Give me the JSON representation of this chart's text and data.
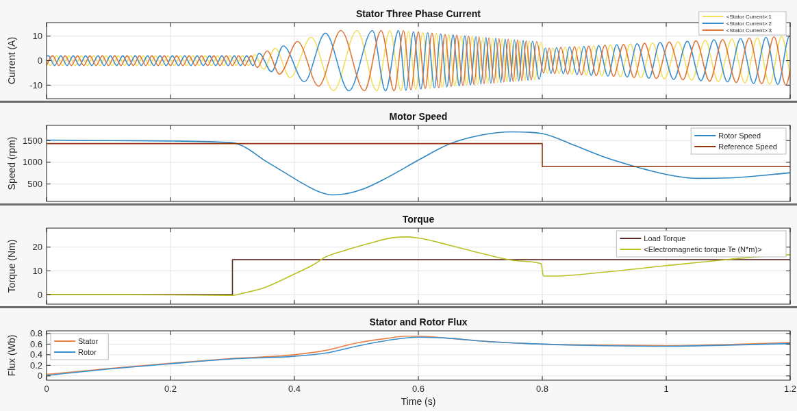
{
  "chart_data": [
    {
      "type": "line",
      "title": "Stator Three Phase Current",
      "ylabel": "Current (A)",
      "xlim": [
        0,
        1.2
      ],
      "ylim": [
        -15.5,
        15.5
      ],
      "xticks": [
        0,
        0.2,
        0.4,
        0.6,
        0.8,
        1,
        1.2
      ],
      "yticks": [
        -10,
        0,
        10
      ],
      "grid": true,
      "legend": "top right",
      "tick_labels": "y",
      "series": [
        {
          "name": "<Stator Current>:1",
          "color": "#f3df5e",
          "x": [
            0,
            0.006,
            0.016,
            0.026,
            0.036,
            0.046,
            0.056,
            0.066,
            0.076,
            0.086,
            0.096,
            0.106,
            0.116,
            0.126,
            0.136,
            0.146,
            0.156,
            0.166,
            0.176,
            0.186,
            0.196,
            0.206,
            0.216,
            0.226,
            0.236,
            0.246,
            0.256,
            0.266,
            0.276,
            0.286,
            0.296,
            0.306,
            0.316,
            0.326,
            0.336,
            0.35,
            0.369,
            0.393,
            0.427,
            0.463,
            0.501,
            0.533,
            0.554,
            0.572,
            0.584,
            0.596,
            0.607,
            0.619,
            0.629,
            0.639,
            0.649,
            0.659,
            0.669,
            0.678,
            0.687,
            0.696,
            0.704,
            0.712,
            0.72,
            0.728,
            0.735,
            0.743,
            0.75,
            0.757,
            0.764,
            0.772,
            0.779,
            0.788,
            0.798,
            0.808,
            0.817,
            0.827,
            0.837,
            0.848,
            0.859,
            0.871,
            0.883,
            0.896,
            0.91,
            0.926,
            0.942,
            0.959,
            0.978,
            0.997,
            1.019,
            1.041,
            1.063,
            1.084,
            1.106,
            1.127,
            1.147,
            1.167,
            1.186,
            1.2
          ],
          "values": [
            0.6,
            -2,
            2,
            -2,
            2,
            -2,
            2,
            -2,
            2,
            -2,
            2,
            -2,
            2,
            -2,
            2,
            -2,
            2,
            -2,
            2,
            -2,
            2,
            -2,
            2,
            -2,
            2,
            -2,
            2,
            -2,
            2,
            -2,
            2,
            -2,
            2,
            -2,
            2.5,
            -3.5,
            5,
            -6.9,
            9.5,
            -12.3,
            12.3,
            -12.3,
            12.3,
            -12.3,
            12,
            -11.8,
            11.5,
            -11.3,
            11.1,
            -10.8,
            10.6,
            -10.4,
            10.2,
            -10,
            9.8,
            -9.6,
            9.5,
            -9.3,
            9.2,
            -9,
            8.9,
            -8.7,
            8.6,
            -8.4,
            8.3,
            -8.1,
            8,
            -7.8,
            7.5,
            -5.1,
            5.2,
            -5.3,
            5.5,
            -5.6,
            5.7,
            -5.9,
            6,
            -6.2,
            6.4,
            -6.6,
            6.8,
            -7,
            7.2,
            -7.5,
            7.7,
            -8,
            8.3,
            -8.6,
            8.8,
            -9.1,
            9.3,
            -9.6,
            9.8,
            -6.7
          ]
        },
        {
          "name": "<Stator Current>:2",
          "color": "#3a8fcf",
          "x": [
            0,
            0.003,
            0.013,
            0.023,
            0.033,
            0.043,
            0.053,
            0.063,
            0.073,
            0.083,
            0.093,
            0.103,
            0.113,
            0.123,
            0.133,
            0.143,
            0.153,
            0.163,
            0.173,
            0.183,
            0.193,
            0.203,
            0.213,
            0.223,
            0.233,
            0.243,
            0.253,
            0.263,
            0.273,
            0.283,
            0.293,
            0.303,
            0.313,
            0.323,
            0.333,
            0.343,
            0.363,
            0.382,
            0.416,
            0.45,
            0.488,
            0.526,
            0.547,
            0.568,
            0.58,
            0.592,
            0.604,
            0.615,
            0.626,
            0.636,
            0.646,
            0.656,
            0.666,
            0.675,
            0.684,
            0.693,
            0.701,
            0.709,
            0.717,
            0.725,
            0.733,
            0.74,
            0.748,
            0.755,
            0.762,
            0.769,
            0.777,
            0.784,
            0.795,
            0.805,
            0.814,
            0.823,
            0.834,
            0.844,
            0.856,
            0.867,
            0.879,
            0.891,
            0.906,
            0.92,
            0.937,
            0.953,
            0.972,
            0.99,
            1.012,
            1.034,
            1.056,
            1.077,
            1.099,
            1.12,
            1.141,
            1.161,
            1.18,
            1.199,
            1.2
          ],
          "values": [
            1.9,
            2,
            -2,
            2,
            -2,
            2,
            -2,
            2,
            -2,
            2,
            -2,
            2,
            -2,
            2,
            -2,
            2,
            -2,
            2,
            -2,
            2,
            -2,
            2,
            -2,
            2,
            -2,
            2,
            -2,
            2,
            -2,
            2,
            -2,
            2,
            -2,
            2,
            -2,
            3,
            -4.5,
            6,
            -8.6,
            11.2,
            -12.3,
            12.3,
            -12.3,
            12.3,
            -12.1,
            11.8,
            -11.6,
            11.4,
            -11.1,
            10.9,
            -10.7,
            10.5,
            -10.3,
            10.1,
            -9.9,
            9.7,
            -9.5,
            9.4,
            -9.2,
            9.1,
            -8.9,
            8.8,
            -8.6,
            8.5,
            -8.3,
            8.2,
            -8,
            7.9,
            -7.6,
            5.1,
            -5.2,
            5.3,
            -5.4,
            5.6,
            -5.7,
            5.8,
            -6,
            6.1,
            -6.3,
            6.5,
            -6.7,
            6.9,
            -7.2,
            7.4,
            -7.7,
            7.9,
            -8.2,
            8.5,
            -8.7,
            9,
            -9.3,
            9.5,
            -9.7,
            10,
            10
          ]
        },
        {
          "name": "<Stator Current>:3",
          "color": "#e0773a",
          "x": [
            0,
            0.01,
            0.02,
            0.03,
            0.04,
            0.05,
            0.06,
            0.07,
            0.08,
            0.09,
            0.1,
            0.11,
            0.12,
            0.13,
            0.14,
            0.15,
            0.16,
            0.17,
            0.18,
            0.19,
            0.2,
            0.21,
            0.22,
            0.23,
            0.24,
            0.25,
            0.26,
            0.27,
            0.28,
            0.29,
            0.3,
            0.31,
            0.32,
            0.33,
            0.34,
            0.356,
            0.376,
            0.405,
            0.439,
            0.475,
            0.513,
            0.54,
            0.561,
            0.576,
            0.588,
            0.6,
            0.611,
            0.622,
            0.633,
            0.643,
            0.653,
            0.662,
            0.672,
            0.681,
            0.69,
            0.698,
            0.706,
            0.714,
            0.722,
            0.73,
            0.738,
            0.745,
            0.753,
            0.76,
            0.767,
            0.774,
            0.782,
            0.791,
            0.802,
            0.811,
            0.82,
            0.83,
            0.841,
            0.852,
            0.863,
            0.875,
            0.887,
            0.901,
            0.915,
            0.931,
            0.948,
            0.965,
            0.984,
            1.005,
            1.027,
            1.048,
            1.07,
            1.091,
            1.113,
            1.134,
            1.154,
            1.174,
            1.193,
            1.2
          ],
          "values": [
            -2,
            2,
            -2,
            2,
            -2,
            2,
            -2,
            2,
            -2,
            2,
            -2,
            2,
            -2,
            2,
            -2,
            2,
            -2,
            2,
            -2,
            2,
            -2,
            2,
            -2,
            2,
            -2,
            2,
            -2,
            2,
            -2,
            2,
            -2,
            2,
            -2,
            2,
            -2.8,
            4,
            -5.5,
            7.8,
            -10.4,
            12.3,
            -12.3,
            12.3,
            -12.3,
            12.2,
            -11.9,
            11.7,
            -11.4,
            11.2,
            -11,
            10.7,
            -10.5,
            10.4,
            -10.1,
            10,
            -9.8,
            9.6,
            -9.4,
            9.3,
            -9.1,
            9,
            -8.8,
            8.7,
            -8.5,
            8.4,
            -8.2,
            8.1,
            -7.9,
            7.7,
            -5,
            5.1,
            -5.3,
            5.4,
            -5.5,
            5.7,
            -5.8,
            5.9,
            -6.1,
            6.3,
            -6.4,
            6.6,
            -6.9,
            7.1,
            -7.3,
            7.6,
            -7.8,
            8.1,
            -8.4,
            8.6,
            -8.9,
            9.2,
            -9.4,
            9.7,
            -9.9,
            -4
          ]
        }
      ]
    },
    {
      "type": "line",
      "title": "Motor Speed",
      "ylabel": "Speed (rpm)",
      "xlim": [
        0,
        1.2
      ],
      "ylim": [
        100,
        1850
      ],
      "xticks": [
        0,
        0.2,
        0.4,
        0.6,
        0.8,
        1,
        1.2
      ],
      "yticks": [
        500,
        1000,
        1500
      ],
      "grid": true,
      "legend": "top right",
      "tick_labels": "y",
      "series": [
        {
          "name": "Rotor Speed",
          "color": "#2f86c0",
          "x": [
            0,
            0.1,
            0.2,
            0.3,
            0.32,
            0.35,
            0.38,
            0.41,
            0.44,
            0.46,
            0.48,
            0.51,
            0.55,
            0.6,
            0.65,
            0.7,
            0.75,
            0.78,
            0.8,
            0.85,
            0.9,
            0.95,
            1,
            1.05,
            1.1,
            1.15,
            1.2
          ],
          "values": [
            1510,
            1500,
            1490,
            1450,
            1350,
            1060,
            800,
            540,
            320,
            250,
            270,
            380,
            650,
            1050,
            1420,
            1620,
            1700,
            1690,
            1660,
            1400,
            1120,
            900,
            720,
            630,
            640,
            690,
            760
          ]
        },
        {
          "name": "Reference Speed",
          "color": "#93380f",
          "type": "step",
          "x": [
            0,
            0.8,
            1.2
          ],
          "values": [
            1430,
            900,
            900
          ]
        }
      ]
    },
    {
      "type": "line",
      "title": "Torque",
      "ylabel": "Torque (Nm)",
      "xlim": [
        0,
        1.2
      ],
      "ylim": [
        -4,
        28
      ],
      "xticks": [
        0,
        0.2,
        0.4,
        0.6,
        0.8,
        1,
        1.2
      ],
      "yticks": [
        0,
        10,
        20
      ],
      "grid": true,
      "legend": "top right",
      "tick_labels": "y",
      "series": [
        {
          "name": "Load Torque",
          "color": "#5e2b2b",
          "type": "step",
          "x": [
            0,
            0.3,
            1.2
          ],
          "values": [
            0,
            14.7,
            14.7
          ]
        },
        {
          "name": "<Electromagnetic torque Te (N*m)>",
          "color": "#b9c123",
          "x": [
            0,
            0.1,
            0.2,
            0.3,
            0.32,
            0.35,
            0.4,
            0.43,
            0.45,
            0.48,
            0.52,
            0.56,
            0.58,
            0.6,
            0.65,
            0.7,
            0.75,
            0.79,
            0.798,
            0.802,
            0.82,
            0.9,
            1,
            1.1,
            1.15,
            1.2
          ],
          "values": [
            0,
            0,
            -0.1,
            -0.3,
            0.8,
            2.8,
            8.7,
            12.5,
            15.8,
            18.5,
            21.5,
            24,
            24.3,
            23.8,
            20.8,
            17.5,
            14.5,
            13.5,
            13,
            7.8,
            7.8,
            9.5,
            12.2,
            14.8,
            16,
            16.8
          ]
        }
      ]
    },
    {
      "type": "line",
      "title": "Stator and Rotor Flux",
      "ylabel": "Flux (Wb)",
      "xlabel": "Time (s)",
      "xlim": [
        0,
        1.2
      ],
      "ylim": [
        -0.08,
        0.85
      ],
      "xticks": [
        0,
        0.2,
        0.4,
        0.6,
        0.8,
        1,
        1.2
      ],
      "yticks": [
        0,
        0.2,
        0.4,
        0.6,
        0.8
      ],
      "grid": true,
      "legend": "top left",
      "series": [
        {
          "name": "Stator",
          "color": "#e8834a",
          "x": [
            0,
            0.1,
            0.2,
            0.3,
            0.4,
            0.45,
            0.5,
            0.55,
            0.58,
            0.6,
            0.65,
            0.7,
            0.8,
            0.9,
            1,
            1.1,
            1.2
          ],
          "values": [
            0.03,
            0.14,
            0.24,
            0.33,
            0.4,
            0.48,
            0.62,
            0.71,
            0.75,
            0.75,
            0.71,
            0.66,
            0.6,
            0.58,
            0.57,
            0.59,
            0.63
          ]
        },
        {
          "name": "Rotor",
          "color": "#3a8fcf",
          "x": [
            0,
            0.1,
            0.2,
            0.3,
            0.4,
            0.45,
            0.5,
            0.55,
            0.6,
            0.65,
            0.7,
            0.8,
            0.9,
            1,
            1.1,
            1.2
          ],
          "values": [
            0.01,
            0.13,
            0.23,
            0.32,
            0.37,
            0.43,
            0.56,
            0.67,
            0.73,
            0.71,
            0.66,
            0.6,
            0.57,
            0.56,
            0.58,
            0.61
          ]
        }
      ]
    }
  ]
}
